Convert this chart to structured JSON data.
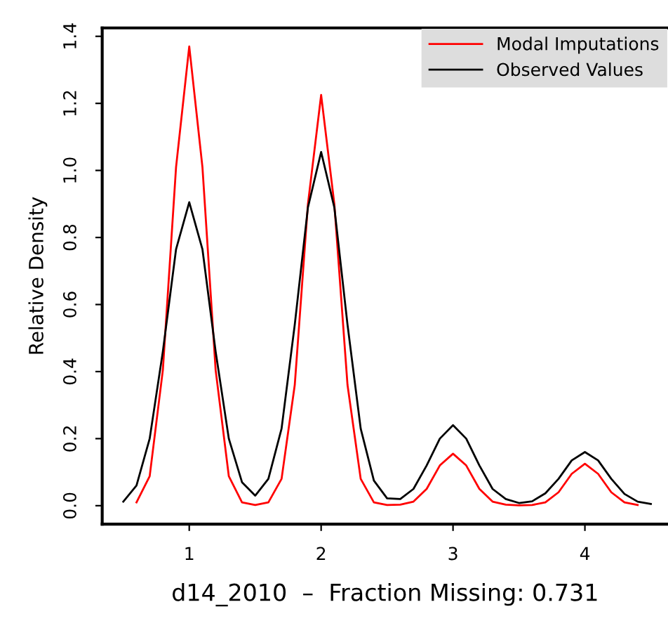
{
  "chart_data": {
    "type": "line",
    "xlabel": "d14_2010  –  Fraction Missing: 0.731",
    "ylabel": "Relative Density",
    "xlim": [
      0.34,
      4.63
    ],
    "ylim": [
      -0.055,
      1.425
    ],
    "xticks": [
      1,
      2,
      3,
      4
    ],
    "yticks": [
      {
        "value": 0,
        "label": "0.0"
      },
      0.2,
      0.4,
      0.6,
      0.8,
      {
        "value": 1,
        "label": "1.0"
      },
      1.2,
      1.4
    ],
    "grid": false,
    "legend": "top right",
    "marker": "none",
    "line_style": "solid",
    "series": [
      {
        "name": "Modal Imputations",
        "color": "#ff0000",
        "x": [
          0.6,
          0.7,
          0.8,
          0.9,
          1.0,
          1.1,
          1.2,
          1.3,
          1.4,
          1.5,
          1.6,
          1.7,
          1.8,
          1.9,
          2.0,
          2.1,
          2.2,
          2.3,
          2.4,
          2.5,
          2.6,
          2.7,
          2.8,
          2.9,
          3.0,
          3.1,
          3.2,
          3.3,
          3.4,
          3.5,
          3.6,
          3.7,
          3.8,
          3.9,
          4.0,
          4.1,
          4.2,
          4.3,
          4.4
        ],
        "values": [
          0.01,
          0.088,
          0.405,
          1.01,
          1.37,
          1.01,
          0.405,
          0.088,
          0.01,
          0.002,
          0.01,
          0.08,
          0.36,
          0.9,
          1.225,
          0.9,
          0.36,
          0.08,
          0.01,
          0.002,
          0.003,
          0.012,
          0.05,
          0.12,
          0.155,
          0.12,
          0.05,
          0.012,
          0.003,
          0.001,
          0.002,
          0.01,
          0.04,
          0.095,
          0.125,
          0.095,
          0.04,
          0.01,
          0.002
        ]
      },
      {
        "name": "Observed Values",
        "color": "#000000",
        "x": [
          0.5,
          0.6,
          0.7,
          0.8,
          0.9,
          1.0,
          1.1,
          1.2,
          1.3,
          1.4,
          1.5,
          1.6,
          1.7,
          1.8,
          1.9,
          2.0,
          2.1,
          2.2,
          2.3,
          2.4,
          2.5,
          2.6,
          2.7,
          2.8,
          2.9,
          3.0,
          3.1,
          3.2,
          3.3,
          3.4,
          3.5,
          3.6,
          3.7,
          3.8,
          3.9,
          4.0,
          4.1,
          4.2,
          4.3,
          4.4,
          4.5
        ],
        "values": [
          0.012,
          0.06,
          0.2,
          0.46,
          0.765,
          0.905,
          0.765,
          0.46,
          0.2,
          0.07,
          0.03,
          0.08,
          0.23,
          0.54,
          0.89,
          1.055,
          0.89,
          0.54,
          0.23,
          0.075,
          0.022,
          0.02,
          0.05,
          0.12,
          0.2,
          0.24,
          0.2,
          0.12,
          0.05,
          0.02,
          0.008,
          0.013,
          0.037,
          0.08,
          0.135,
          0.16,
          0.135,
          0.08,
          0.035,
          0.012,
          0.005
        ]
      }
    ]
  }
}
